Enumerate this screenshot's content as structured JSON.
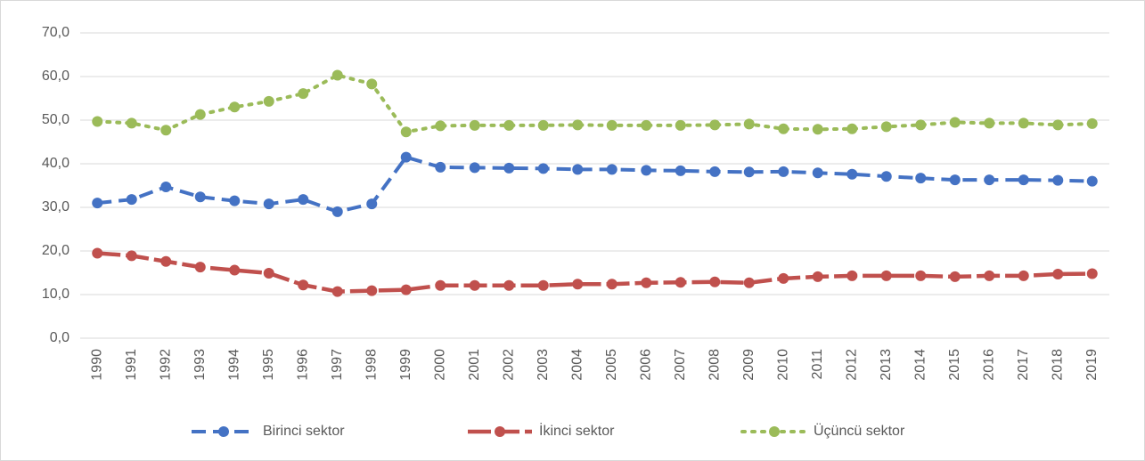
{
  "chart_data": {
    "type": "line",
    "categories": [
      "1990",
      "1991",
      "1992",
      "1993",
      "1994",
      "1995",
      "1996",
      "1997",
      "1998",
      "1999",
      "2000",
      "2001",
      "2002",
      "2003",
      "2004",
      "2005",
      "2006",
      "2007",
      "2008",
      "2009",
      "2010",
      "2011",
      "2012",
      "2013",
      "2014",
      "2015",
      "2016",
      "2017",
      "2018",
      "2019"
    ],
    "series": [
      {
        "name": "Birinci sektor",
        "color": "#4472c4",
        "values": [
          31.0,
          31.8,
          34.7,
          32.4,
          31.5,
          30.8,
          31.8,
          29.0,
          30.8,
          41.5,
          39.2,
          39.1,
          39.0,
          38.9,
          38.7,
          38.7,
          38.5,
          38.4,
          38.2,
          38.1,
          38.2,
          37.9,
          37.6,
          37.1,
          36.7,
          36.3,
          36.3,
          36.3,
          36.2,
          36.0
        ]
      },
      {
        "name": "İkinci sektor",
        "color": "#c0504d",
        "values": [
          19.5,
          18.9,
          17.6,
          16.3,
          15.6,
          14.9,
          12.2,
          10.7,
          10.9,
          11.1,
          12.1,
          12.1,
          12.1,
          12.1,
          12.4,
          12.4,
          12.7,
          12.8,
          12.9,
          12.7,
          13.7,
          14.1,
          14.3,
          14.3,
          14.3,
          14.1,
          14.3,
          14.3,
          14.7,
          14.8
        ]
      },
      {
        "name": "Üçüncü sektor",
        "color": "#9bbb59",
        "values": [
          49.7,
          49.3,
          47.7,
          51.3,
          53.0,
          54.3,
          56.1,
          60.3,
          58.3,
          47.3,
          48.7,
          48.8,
          48.8,
          48.8,
          48.9,
          48.8,
          48.8,
          48.8,
          48.9,
          49.1,
          48.0,
          47.9,
          48.0,
          48.5,
          48.9,
          49.5,
          49.3,
          49.3,
          48.9,
          49.2
        ]
      }
    ],
    "ylim": [
      0,
      70
    ],
    "yticks": [
      {
        "value": 0,
        "label": "0,0"
      },
      {
        "value": 10,
        "label": "10,0"
      },
      {
        "value": 20,
        "label": "20,0"
      },
      {
        "value": 30,
        "label": "30,0"
      },
      {
        "value": 40,
        "label": "40,0"
      },
      {
        "value": 50,
        "label": "50,0"
      },
      {
        "value": 60,
        "label": "60,0"
      },
      {
        "value": 70,
        "label": "70,0"
      }
    ],
    "grid": true,
    "legend": "bottom"
  }
}
